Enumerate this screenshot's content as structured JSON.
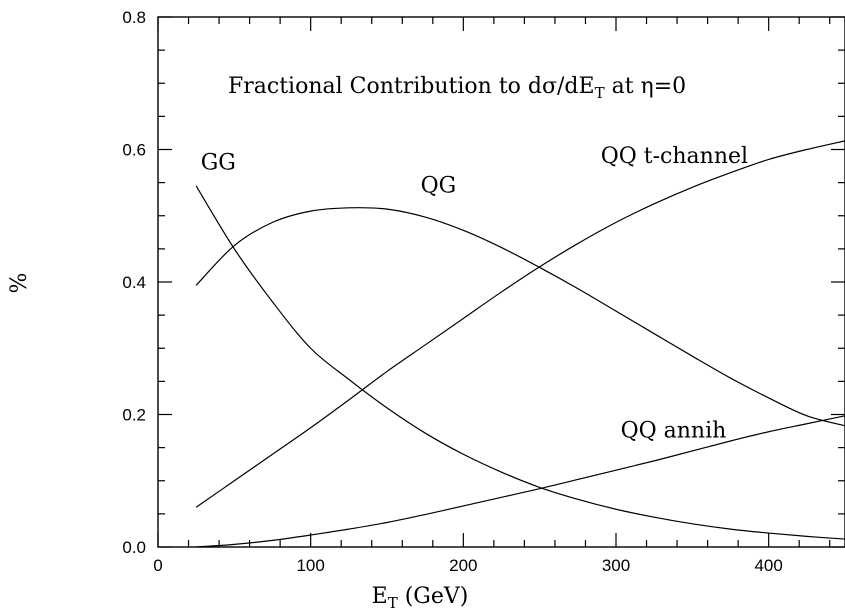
{
  "chart_data": {
    "type": "line",
    "title": "Fractional Contribution to dσ/dE",
    "title_sub": "T",
    "title_suffix": " at η=0",
    "xlabel": "E",
    "xlabel_sub": "T",
    "xlabel_suffix": " (GeV)",
    "ylabel": "%",
    "xlim": [
      0,
      450
    ],
    "ylim": [
      0,
      0.8
    ],
    "x_ticks": [
      0,
      100,
      200,
      300,
      400
    ],
    "x_tick_labels": [
      "0",
      "100",
      "200",
      "300",
      "400"
    ],
    "y_ticks": [
      0,
      0.2,
      0.4,
      0.6,
      0.8
    ],
    "y_tick_labels": [
      "0.0",
      "0.2",
      "0.4",
      "0.6",
      "0.8"
    ],
    "x_minor_step": 20,
    "y_minor_step": 0.05,
    "grid": false,
    "legend": "none",
    "series": [
      {
        "name": "GG",
        "x": [
          25,
          50,
          75,
          100,
          125,
          150,
          175,
          200,
          225,
          250,
          275,
          300,
          325,
          350,
          375,
          400,
          425,
          450
        ],
        "values": [
          0.545,
          0.45,
          0.37,
          0.3,
          0.253,
          0.21,
          0.172,
          0.14,
          0.113,
          0.09,
          0.072,
          0.057,
          0.045,
          0.035,
          0.027,
          0.021,
          0.016,
          0.012
        ]
      },
      {
        "name": "QG",
        "x": [
          25,
          50,
          75,
          100,
          125,
          150,
          175,
          200,
          225,
          250,
          275,
          300,
          325,
          350,
          375,
          400,
          425,
          450
        ],
        "values": [
          0.395,
          0.455,
          0.49,
          0.507,
          0.512,
          0.51,
          0.498,
          0.478,
          0.452,
          0.422,
          0.39,
          0.356,
          0.322,
          0.288,
          0.255,
          0.225,
          0.198,
          0.183
        ]
      },
      {
        "name": "QQ t-channel",
        "x": [
          25,
          50,
          75,
          100,
          125,
          150,
          175,
          200,
          225,
          250,
          275,
          300,
          325,
          350,
          375,
          400,
          425,
          450
        ],
        "values": [
          0.06,
          0.1,
          0.14,
          0.18,
          0.222,
          0.265,
          0.305,
          0.345,
          0.385,
          0.423,
          0.458,
          0.49,
          0.518,
          0.543,
          0.565,
          0.585,
          0.6,
          0.613
        ]
      },
      {
        "name": "QQ annih",
        "x": [
          25,
          50,
          75,
          100,
          125,
          150,
          175,
          200,
          225,
          250,
          275,
          300,
          325,
          350,
          375,
          400,
          425,
          450
        ],
        "values": [
          0.0,
          0.004,
          0.01,
          0.018,
          0.027,
          0.037,
          0.049,
          0.062,
          0.075,
          0.088,
          0.102,
          0.116,
          0.13,
          0.145,
          0.16,
          0.174,
          0.186,
          0.198
        ]
      }
    ],
    "annotations": [
      {
        "text": "GG",
        "x": 28,
        "y": 0.57
      },
      {
        "text": "QG",
        "x": 172,
        "y": 0.535
      },
      {
        "text": "QQ t-channel",
        "x": 290,
        "y": 0.58
      },
      {
        "text": "QQ annih",
        "x": 303,
        "y": 0.165
      }
    ]
  }
}
